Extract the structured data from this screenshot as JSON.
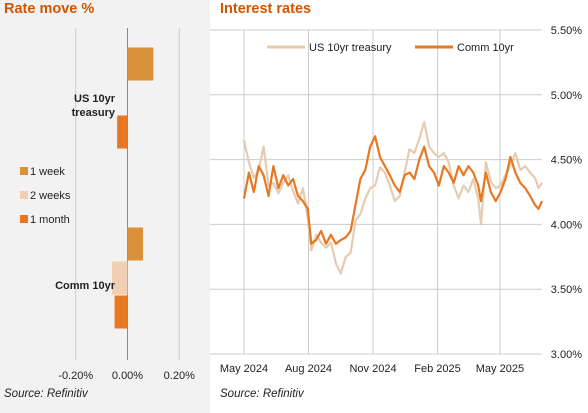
{
  "left": {
    "title": "Rate move %",
    "source": "Source: Refinitiv",
    "chart_data": {
      "type": "bar",
      "orientation": "horizontal",
      "categories": [
        "US 10yr treasury",
        "Comm 10yr"
      ],
      "category_label_lines": [
        [
          "US 10yr",
          "treasury"
        ],
        [
          "Comm 10yr"
        ]
      ],
      "series": [
        {
          "name": "1 week",
          "values": [
            0.1,
            0.06
          ]
        },
        {
          "name": "2 weeks",
          "values": [
            0.0,
            -0.06
          ]
        },
        {
          "name": "1 month",
          "values": [
            -0.04,
            -0.05
          ]
        }
      ],
      "xlim": [
        -0.28,
        0.28
      ],
      "xticks": [
        -0.2,
        0.0,
        0.2
      ],
      "xtick_labels": [
        "-0.20%",
        "0.00%",
        "0.20%"
      ],
      "grid": true,
      "legend_position": "left-middle"
    }
  },
  "right": {
    "title": "Interest rates",
    "source": "Source: Refinitiv",
    "chart_data": {
      "type": "line",
      "ylim": [
        3.0,
        5.5
      ],
      "yticks": [
        3.0,
        3.5,
        4.0,
        4.5,
        5.0,
        5.5
      ],
      "ytick_labels": [
        "3.00%",
        "3.50%",
        "4.00%",
        "4.50%",
        "5.00%",
        "5.50%"
      ],
      "xlim": [
        "2024-05-01",
        "2025-06-30"
      ],
      "xticks": [
        "2024-05-01",
        "2024-08-01",
        "2024-11-01",
        "2025-02-01",
        "2025-05-01"
      ],
      "xtick_labels": [
        "May 2024",
        "Aug 2024",
        "Nov 2024",
        "Feb 2025",
        "May 2025"
      ],
      "grid": true,
      "legend_position": "top",
      "series": [
        {
          "name": "US 10yr treasury",
          "color": "#e6cbb0",
          "width": 2.2,
          "points": [
            [
              "2024-05-01",
              4.65
            ],
            [
              "2024-05-08",
              4.48
            ],
            [
              "2024-05-15",
              4.36
            ],
            [
              "2024-05-22",
              4.42
            ],
            [
              "2024-05-29",
              4.6
            ],
            [
              "2024-06-05",
              4.3
            ],
            [
              "2024-06-12",
              4.32
            ],
            [
              "2024-06-19",
              4.24
            ],
            [
              "2024-06-26",
              4.32
            ],
            [
              "2024-07-03",
              4.38
            ],
            [
              "2024-07-10",
              4.26
            ],
            [
              "2024-07-17",
              4.16
            ],
            [
              "2024-07-24",
              4.28
            ],
            [
              "2024-07-31",
              4.05
            ],
            [
              "2024-08-05",
              3.8
            ],
            [
              "2024-08-12",
              3.92
            ],
            [
              "2024-08-19",
              3.86
            ],
            [
              "2024-08-26",
              3.82
            ],
            [
              "2024-09-02",
              3.86
            ],
            [
              "2024-09-09",
              3.7
            ],
            [
              "2024-09-16",
              3.62
            ],
            [
              "2024-09-23",
              3.75
            ],
            [
              "2024-09-30",
              3.78
            ],
            [
              "2024-10-07",
              4.03
            ],
            [
              "2024-10-14",
              4.08
            ],
            [
              "2024-10-21",
              4.2
            ],
            [
              "2024-10-28",
              4.28
            ],
            [
              "2024-11-04",
              4.3
            ],
            [
              "2024-11-11",
              4.44
            ],
            [
              "2024-11-18",
              4.4
            ],
            [
              "2024-11-25",
              4.3
            ],
            [
              "2024-12-02",
              4.18
            ],
            [
              "2024-12-09",
              4.22
            ],
            [
              "2024-12-16",
              4.4
            ],
            [
              "2024-12-23",
              4.58
            ],
            [
              "2024-12-30",
              4.55
            ],
            [
              "2025-01-06",
              4.66
            ],
            [
              "2025-01-13",
              4.79
            ],
            [
              "2025-01-20",
              4.6
            ],
            [
              "2025-01-27",
              4.55
            ],
            [
              "2025-02-03",
              4.52
            ],
            [
              "2025-02-10",
              4.55
            ],
            [
              "2025-02-17",
              4.48
            ],
            [
              "2025-02-24",
              4.3
            ],
            [
              "2025-03-03",
              4.2
            ],
            [
              "2025-03-10",
              4.3
            ],
            [
              "2025-03-17",
              4.25
            ],
            [
              "2025-03-24",
              4.35
            ],
            [
              "2025-03-31",
              4.2
            ],
            [
              "2025-04-04",
              4.0
            ],
            [
              "2025-04-11",
              4.48
            ],
            [
              "2025-04-18",
              4.33
            ],
            [
              "2025-04-25",
              4.28
            ],
            [
              "2025-05-02",
              4.3
            ],
            [
              "2025-05-09",
              4.38
            ],
            [
              "2025-05-16",
              4.46
            ],
            [
              "2025-05-23",
              4.55
            ],
            [
              "2025-05-30",
              4.42
            ],
            [
              "2025-06-06",
              4.45
            ],
            [
              "2025-06-13",
              4.4
            ],
            [
              "2025-06-20",
              4.36
            ],
            [
              "2025-06-25",
              4.28
            ],
            [
              "2025-06-30",
              4.32
            ]
          ]
        },
        {
          "name": "Comm 10yr",
          "color": "#e87722",
          "width": 2.2,
          "points": [
            [
              "2024-05-01",
              4.2
            ],
            [
              "2024-05-08",
              4.4
            ],
            [
              "2024-05-15",
              4.25
            ],
            [
              "2024-05-22",
              4.45
            ],
            [
              "2024-05-29",
              4.38
            ],
            [
              "2024-06-05",
              4.22
            ],
            [
              "2024-06-12",
              4.45
            ],
            [
              "2024-06-19",
              4.28
            ],
            [
              "2024-06-26",
              4.38
            ],
            [
              "2024-07-03",
              4.3
            ],
            [
              "2024-07-10",
              4.35
            ],
            [
              "2024-07-17",
              4.22
            ],
            [
              "2024-07-24",
              4.18
            ],
            [
              "2024-07-31",
              4.12
            ],
            [
              "2024-08-05",
              3.85
            ],
            [
              "2024-08-12",
              3.88
            ],
            [
              "2024-08-19",
              3.95
            ],
            [
              "2024-08-26",
              3.85
            ],
            [
              "2024-09-02",
              3.92
            ],
            [
              "2024-09-09",
              3.85
            ],
            [
              "2024-09-16",
              3.88
            ],
            [
              "2024-09-23",
              3.9
            ],
            [
              "2024-09-30",
              3.95
            ],
            [
              "2024-10-07",
              4.15
            ],
            [
              "2024-10-14",
              4.35
            ],
            [
              "2024-10-21",
              4.42
            ],
            [
              "2024-10-28",
              4.6
            ],
            [
              "2024-11-04",
              4.68
            ],
            [
              "2024-11-11",
              4.52
            ],
            [
              "2024-11-18",
              4.45
            ],
            [
              "2024-11-25",
              4.38
            ],
            [
              "2024-12-02",
              4.3
            ],
            [
              "2024-12-09",
              4.25
            ],
            [
              "2024-12-16",
              4.38
            ],
            [
              "2024-12-23",
              4.4
            ],
            [
              "2024-12-30",
              4.35
            ],
            [
              "2025-01-06",
              4.5
            ],
            [
              "2025-01-13",
              4.6
            ],
            [
              "2025-01-20",
              4.45
            ],
            [
              "2025-01-27",
              4.4
            ],
            [
              "2025-02-03",
              4.3
            ],
            [
              "2025-02-10",
              4.45
            ],
            [
              "2025-02-17",
              4.4
            ],
            [
              "2025-02-24",
              4.32
            ],
            [
              "2025-03-03",
              4.45
            ],
            [
              "2025-03-10",
              4.38
            ],
            [
              "2025-03-17",
              4.45
            ],
            [
              "2025-03-24",
              4.4
            ],
            [
              "2025-03-31",
              4.3
            ],
            [
              "2025-04-04",
              4.18
            ],
            [
              "2025-04-11",
              4.4
            ],
            [
              "2025-04-18",
              4.25
            ],
            [
              "2025-04-25",
              4.18
            ],
            [
              "2025-05-02",
              4.25
            ],
            [
              "2025-05-09",
              4.35
            ],
            [
              "2025-05-16",
              4.52
            ],
            [
              "2025-05-23",
              4.4
            ],
            [
              "2025-05-30",
              4.32
            ],
            [
              "2025-06-06",
              4.28
            ],
            [
              "2025-06-13",
              4.22
            ],
            [
              "2025-06-20",
              4.15
            ],
            [
              "2025-06-25",
              4.12
            ],
            [
              "2025-06-30",
              4.18
            ]
          ]
        }
      ]
    }
  },
  "colors": {
    "title": "#d35400",
    "bar_1_week": "#d9913a",
    "bar_2_weeks": "#f0cfb2",
    "bar_1_month": "#e87722",
    "grid": "#cccccc",
    "left_background": "#f2f2f2"
  }
}
